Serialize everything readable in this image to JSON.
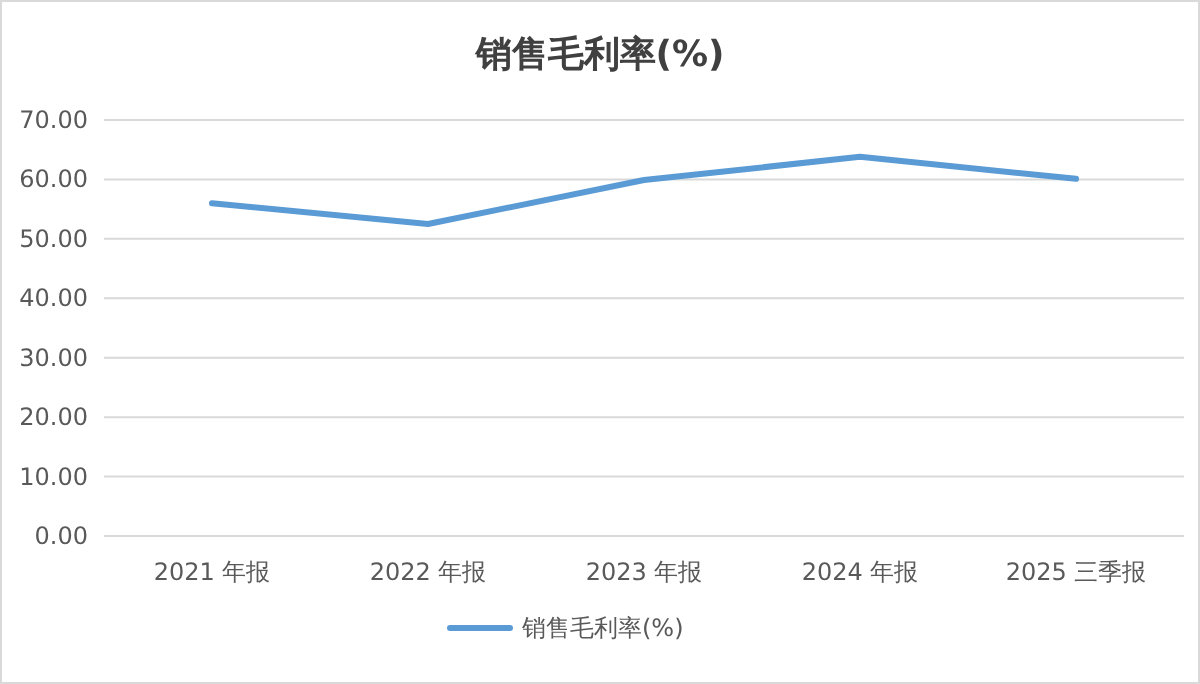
{
  "chart_data": {
    "type": "line",
    "title": "销售毛利率(%)",
    "categories": [
      "2021 年报",
      "2022 年报",
      "2023 年报",
      "2024 年报",
      "2025 三季报"
    ],
    "series": [
      {
        "name": "销售毛利率(%)",
        "color": "#5b9bd5",
        "values": [
          56.0,
          52.5,
          59.9,
          63.8,
          60.1
        ]
      }
    ],
    "ylim": [
      0,
      70
    ],
    "yticks": [
      {
        "value": 0,
        "label": "0.00"
      },
      {
        "value": 10,
        "label": "10.00"
      },
      {
        "value": 20,
        "label": "20.00"
      },
      {
        "value": 30,
        "label": "30.00"
      },
      {
        "value": 40,
        "label": "40.00"
      },
      {
        "value": 50,
        "label": "50.00"
      },
      {
        "value": 60,
        "label": "60.00"
      },
      {
        "value": 70,
        "label": "70.00"
      }
    ],
    "grid": "y",
    "legend": "bottom",
    "marker": "none",
    "line_style": "solid"
  }
}
